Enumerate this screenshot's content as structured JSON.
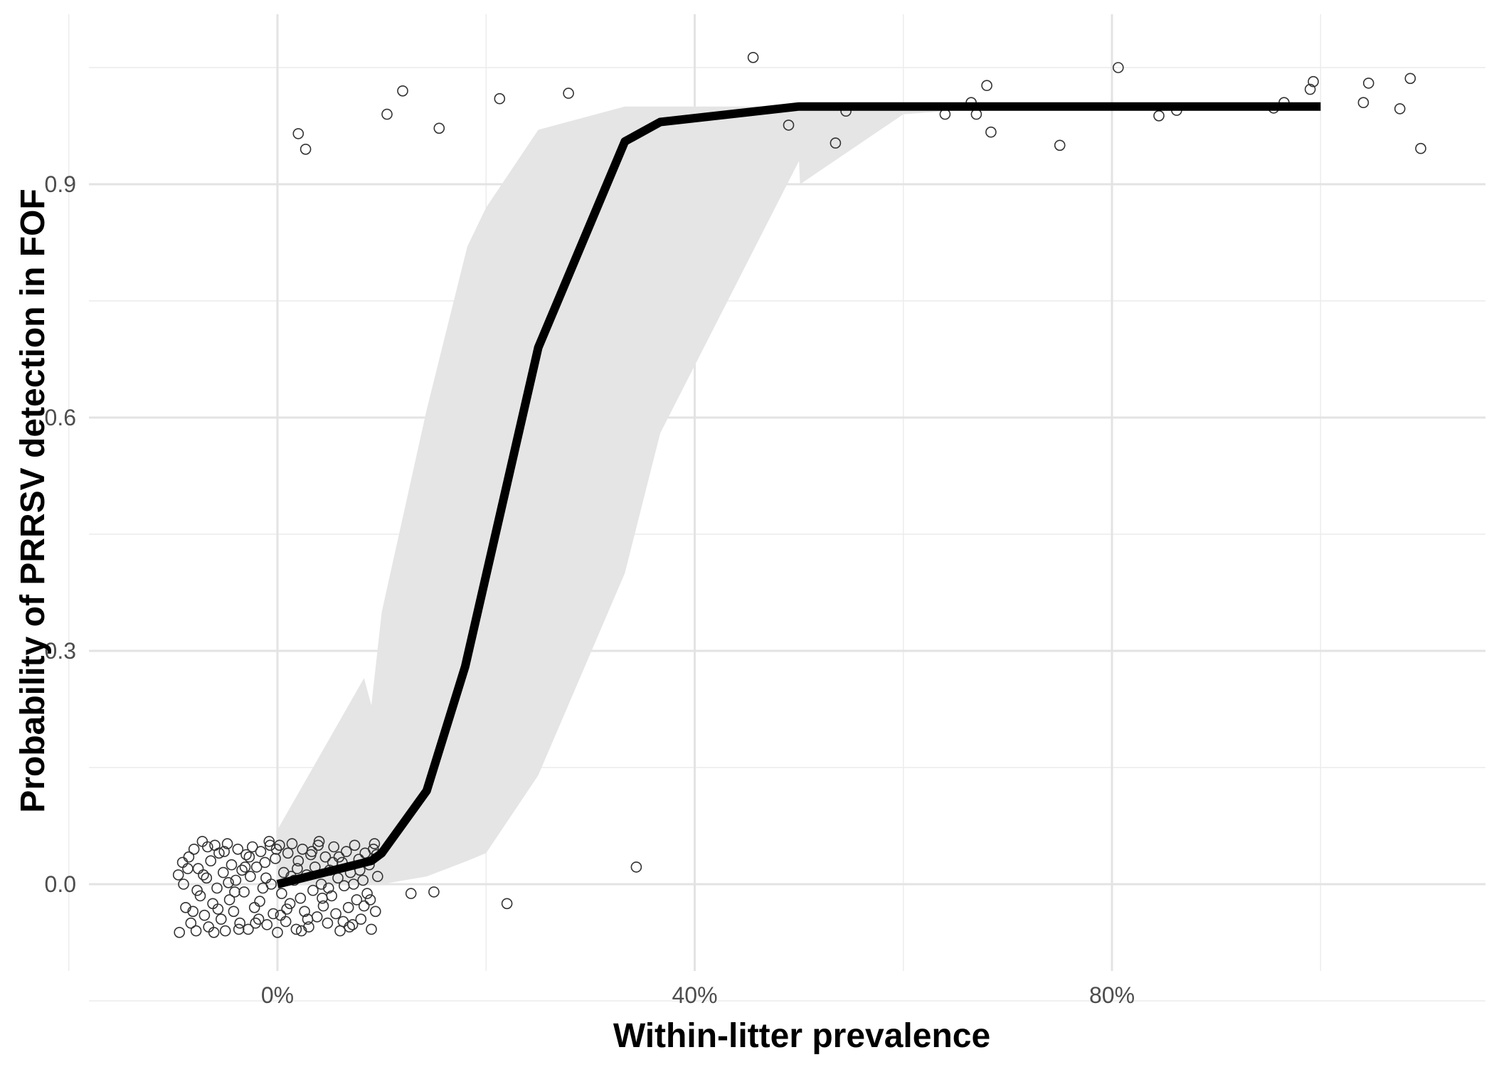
{
  "chart_data": {
    "type": "line",
    "title": "",
    "xlabel": "Within-litter prevalence",
    "ylabel": "Probability of PRRSV detection in FOF",
    "xlim": [
      -0.155,
      1.16
    ],
    "ylim": [
      -0.11,
      1.11
    ],
    "x_ticks": [
      0.0,
      0.4,
      0.8
    ],
    "x_tick_labels": [
      "0%",
      "40%",
      "80%"
    ],
    "x_minor_ticks": [
      -0.2,
      0.2,
      0.6,
      1.0
    ],
    "y_ticks": [
      0.0,
      0.3,
      0.6,
      0.9
    ],
    "y_tick_labels": [
      "0.0",
      "0.3",
      "0.6",
      "0.9"
    ],
    "y_minor_ticks": [
      -0.15,
      0.15,
      0.45,
      0.75,
      1.05
    ],
    "grid": true,
    "legend": "none",
    "series": [
      {
        "type": "line",
        "x": [
          0.0,
          0.09,
          0.1,
          0.143,
          0.18,
          0.25,
          0.333,
          0.367,
          0.5,
          0.6,
          0.7,
          0.8,
          0.9,
          1.0
        ],
        "y": [
          0.0,
          0.03,
          0.04,
          0.12,
          0.28,
          0.69,
          0.955,
          0.98,
          1.0,
          1.0,
          1.0,
          1.0,
          1.0,
          1.0
        ]
      }
    ],
    "confidence_band": {
      "x": [
        0.0,
        0.083,
        0.09,
        0.1,
        0.143,
        0.182,
        0.2,
        0.25,
        0.333,
        0.367,
        0.5,
        0.501,
        0.6,
        0.7,
        0.8,
        0.9,
        1.0
      ],
      "lower": [
        0.0,
        0.0,
        0.0,
        0.0,
        0.01,
        0.03,
        0.04,
        0.14,
        0.4,
        0.58,
        0.93,
        0.9,
        0.99,
        1.0,
        1.0,
        1.0,
        1.0
      ],
      "upper": [
        0.07,
        0.265,
        0.23,
        0.35,
        0.61,
        0.82,
        0.87,
        0.97,
        1.0,
        1.0,
        1.0,
        1.0,
        1.0,
        1.0,
        1.0,
        1.0,
        1.0
      ]
    },
    "scatter_jittered": [
      [
        0.02,
        0.965
      ],
      [
        0.027,
        0.945
      ],
      [
        0.105,
        0.99
      ],
      [
        0.12,
        1.02
      ],
      [
        0.155,
        0.972
      ],
      [
        0.213,
        1.01
      ],
      [
        0.279,
        1.017
      ],
      [
        0.456,
        1.063
      ],
      [
        0.49,
        0.976
      ],
      [
        0.535,
        0.953
      ],
      [
        0.545,
        0.994
      ],
      [
        0.64,
        0.99
      ],
      [
        0.665,
        1.005
      ],
      [
        0.67,
        0.99
      ],
      [
        0.68,
        1.027
      ],
      [
        0.684,
        0.967
      ],
      [
        0.75,
        0.95
      ],
      [
        0.806,
        1.05
      ],
      [
        0.845,
        0.988
      ],
      [
        0.862,
        0.995
      ],
      [
        0.955,
        0.998
      ],
      [
        0.965,
        1.005
      ],
      [
        0.99,
        1.022
      ],
      [
        0.993,
        1.032
      ],
      [
        1.041,
        1.005
      ],
      [
        1.046,
        1.03
      ],
      [
        1.076,
        0.997
      ],
      [
        1.086,
        1.036
      ],
      [
        1.096,
        0.946
      ],
      [
        0.344,
        0.022
      ],
      [
        0.128,
        -0.012
      ],
      [
        0.15,
        -0.01
      ],
      [
        0.22,
        -0.025
      ],
      [
        -0.095,
        0.012
      ],
      [
        -0.09,
        0.0
      ],
      [
        -0.088,
        -0.03
      ],
      [
        -0.085,
        0.035
      ],
      [
        -0.083,
        -0.05
      ],
      [
        -0.08,
        0.045
      ],
      [
        -0.078,
        -0.06
      ],
      [
        -0.076,
        0.02
      ],
      [
        -0.074,
        -0.015
      ],
      [
        -0.072,
        0.055
      ],
      [
        -0.07,
        -0.04
      ],
      [
        -0.068,
        0.008
      ],
      [
        -0.066,
        -0.055
      ],
      [
        -0.064,
        0.03
      ],
      [
        -0.062,
        -0.025
      ],
      [
        -0.06,
        0.05
      ],
      [
        -0.058,
        -0.005
      ],
      [
        -0.056,
        0.04
      ],
      [
        -0.054,
        -0.045
      ],
      [
        -0.052,
        0.015
      ],
      [
        -0.05,
        -0.06
      ],
      [
        -0.048,
        0.052
      ],
      [
        -0.046,
        -0.02
      ],
      [
        -0.044,
        0.025
      ],
      [
        -0.042,
        -0.035
      ],
      [
        -0.04,
        0.005
      ],
      [
        -0.038,
        0.045
      ],
      [
        -0.036,
        -0.05
      ],
      [
        -0.034,
        0.018
      ],
      [
        -0.032,
        -0.01
      ],
      [
        -0.03,
        0.038
      ],
      [
        -0.028,
        -0.058
      ],
      [
        -0.026,
        0.01
      ],
      [
        -0.024,
        0.048
      ],
      [
        -0.022,
        -0.03
      ],
      [
        -0.02,
        0.022
      ],
      [
        -0.018,
        -0.045
      ],
      [
        -0.016,
        0.042
      ],
      [
        -0.014,
        -0.005
      ],
      [
        -0.012,
        0.028
      ],
      [
        -0.01,
        -0.052
      ],
      [
        -0.008,
        0.055
      ],
      [
        -0.006,
        0.0
      ],
      [
        -0.004,
        -0.038
      ],
      [
        -0.002,
        0.033
      ],
      [
        0.0,
        -0.062
      ],
      [
        0.002,
        0.05
      ],
      [
        0.004,
        -0.012
      ],
      [
        0.006,
        0.015
      ],
      [
        0.008,
        -0.048
      ],
      [
        0.01,
        0.04
      ],
      [
        0.012,
        -0.025
      ],
      [
        0.014,
        0.052
      ],
      [
        0.016,
        0.005
      ],
      [
        0.018,
        -0.058
      ],
      [
        0.02,
        0.03
      ],
      [
        0.022,
        -0.018
      ],
      [
        0.024,
        0.045
      ],
      [
        0.026,
        -0.035
      ],
      [
        0.028,
        0.012
      ],
      [
        0.03,
        -0.055
      ],
      [
        0.032,
        0.038
      ],
      [
        0.034,
        -0.008
      ],
      [
        0.036,
        0.022
      ],
      [
        0.038,
        -0.042
      ],
      [
        0.04,
        0.055
      ],
      [
        0.042,
        0.0
      ],
      [
        0.044,
        -0.028
      ],
      [
        0.046,
        0.035
      ],
      [
        0.048,
        -0.05
      ],
      [
        0.05,
        0.018
      ],
      [
        0.052,
        -0.015
      ],
      [
        0.054,
        0.048
      ],
      [
        0.056,
        -0.038
      ],
      [
        0.058,
        0.008
      ],
      [
        0.06,
        -0.06
      ],
      [
        0.062,
        0.028
      ],
      [
        0.064,
        -0.002
      ],
      [
        0.066,
        0.042
      ],
      [
        0.068,
        -0.03
      ],
      [
        0.07,
        0.015
      ],
      [
        0.072,
        -0.052
      ],
      [
        0.074,
        0.05
      ],
      [
        0.076,
        -0.02
      ],
      [
        0.078,
        0.032
      ],
      [
        0.08,
        -0.045
      ],
      [
        0.082,
        0.005
      ],
      [
        0.084,
        0.04
      ],
      [
        0.086,
        -0.012
      ],
      [
        0.088,
        0.025
      ],
      [
        0.09,
        -0.058
      ],
      [
        0.092,
        0.045
      ],
      [
        0.094,
        -0.035
      ],
      [
        0.096,
        0.01
      ],
      [
        -0.094,
        -0.062
      ],
      [
        -0.086,
        0.02
      ],
      [
        -0.077,
        -0.008
      ],
      [
        -0.067,
        0.048
      ],
      [
        -0.057,
        -0.032
      ],
      [
        -0.047,
        0.002
      ],
      [
        -0.037,
        -0.058
      ],
      [
        -0.027,
        0.035
      ],
      [
        -0.017,
        -0.022
      ],
      [
        -0.007,
        0.05
      ],
      [
        0.003,
        -0.04
      ],
      [
        0.013,
        0.01
      ],
      [
        0.023,
        -0.06
      ],
      [
        0.033,
        0.042
      ],
      [
        0.043,
        -0.018
      ],
      [
        0.053,
        0.028
      ],
      [
        0.063,
        -0.048
      ],
      [
        0.073,
        0.0
      ],
      [
        0.083,
        -0.028
      ],
      [
        0.093,
        0.052
      ],
      [
        -0.091,
        0.028
      ],
      [
        -0.081,
        -0.035
      ],
      [
        -0.071,
        0.012
      ],
      [
        -0.061,
        -0.062
      ],
      [
        -0.051,
        0.042
      ],
      [
        -0.041,
        -0.01
      ],
      [
        -0.031,
        0.022
      ],
      [
        -0.021,
        -0.05
      ],
      [
        -0.011,
        0.008
      ],
      [
        -0.001,
        0.045
      ],
      [
        0.009,
        -0.032
      ],
      [
        0.019,
        0.02
      ],
      [
        0.029,
        -0.045
      ],
      [
        0.039,
        0.05
      ],
      [
        0.049,
        -0.005
      ],
      [
        0.059,
        0.035
      ],
      [
        0.069,
        -0.055
      ],
      [
        0.079,
        0.018
      ],
      [
        0.089,
        -0.02
      ],
      [
        0.095,
        0.038
      ]
    ]
  }
}
